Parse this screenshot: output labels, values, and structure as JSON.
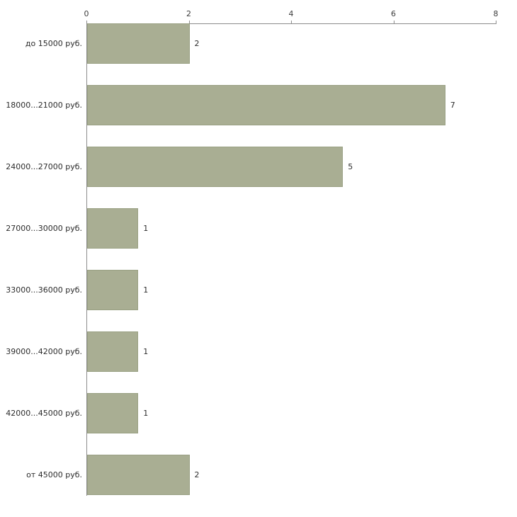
{
  "chart_data": {
    "type": "bar",
    "orientation": "horizontal",
    "title": "",
    "xlabel": "",
    "ylabel": "",
    "categories": [
      "до 15000 руб.",
      "18000...21000 руб.",
      "24000...27000 руб.",
      "27000...30000 руб.",
      "33000...36000 руб.",
      "39000...42000 руб.",
      "42000...45000 руб.",
      "от 45000 руб."
    ],
    "values": [
      2,
      7,
      5,
      1,
      1,
      1,
      1,
      2
    ],
    "x_ticks": [
      0,
      2,
      4,
      6,
      8
    ],
    "xlim": [
      0,
      8
    ],
    "grid": false,
    "legend": false,
    "axis_position": "top",
    "bar_color": "#a9ae93",
    "bar_border_color": "#99a083",
    "axis_color": "#8c8c8c",
    "text_color": "#2b2b2b",
    "background_color": "#ffffff"
  }
}
